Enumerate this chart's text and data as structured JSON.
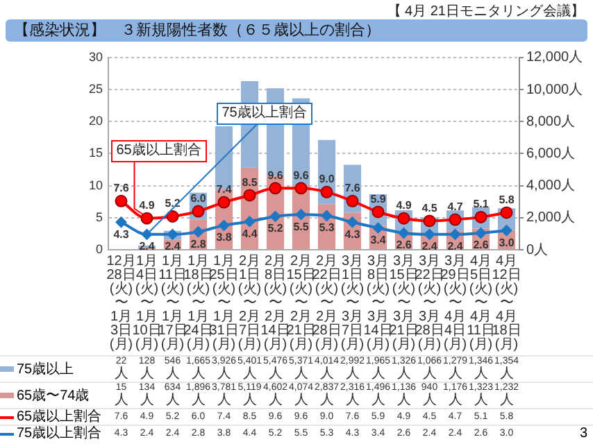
{
  "chart_data": {
    "type": "bar",
    "title": "【感染状況】　３新規陽性者数（６５歳以上の割合）",
    "annotations": [
      "【 4月 21日モニタリング会議】",
      {
        "text": "65歳以上割合",
        "x": "1月4日\n(火)\n〜\n1月10日\n(月)",
        "y": 4.9
      },
      {
        "text": "75歳以上割合",
        "x": "1月4日\n(火)\n〜\n1月10日\n(月)",
        "y": 2.4
      },
      "3"
    ],
    "categories": [
      "12月28日\n(火)\n〜\n1月3日\n(月)",
      "1月4日\n(火)\n〜\n1月10日\n(月)",
      "1月11日\n(火)\n〜\n1月17日\n(月)",
      "1月18日\n(火)\n〜\n1月24日\n(月)",
      "1月25日\n(火)\n〜\n1月31日\n(月)",
      "2月1日\n(火)\n〜\n2月7日\n(月)",
      "2月8日\n(火)\n〜\n2月14日\n(月)",
      "2月15日\n(火)\n〜\n2月21日\n(月)",
      "2月22日\n(火)\n〜\n2月28日\n(月)",
      "3月1日\n(火)\n〜\n3月7日\n(月)",
      "3月8日\n(火)\n〜\n3月14日\n(月)",
      "3月15日\n(火)\n〜\n3月21日\n(月)",
      "3月22日\n(火)\n〜\n3月28日\n(月)",
      "3月29日\n(火)\n〜\n4月4日\n(月)",
      "4月5日\n(火)\n〜\n4月11日\n(月)",
      "4月12日\n(火)\n〜\n4月18日\n(月)"
    ],
    "series": [
      {
        "name": "65歳〜74歳",
        "type": "bar",
        "axis": "y2",
        "color": "#d99694",
        "values": [
          15,
          134,
          634,
          1896,
          3781,
          5119,
          4602,
          4074,
          2837,
          2316,
          1496,
          1136,
          940,
          1176,
          1323,
          1232
        ],
        "value_labels": [
          "15人",
          "134人",
          "634人",
          "1,896人",
          "3,781人",
          "5,119人",
          "4,602人",
          "4,074人",
          "2,837人",
          "2,316人",
          "1,496人",
          "1,136人",
          "940人",
          "1,176人",
          "1,323人",
          "1,232人"
        ]
      },
      {
        "name": "75歳以上",
        "type": "bar",
        "axis": "y2",
        "color": "#95b3d7",
        "values": [
          22,
          128,
          546,
          1665,
          3926,
          5401,
          5476,
          5371,
          4014,
          2992,
          1965,
          1326,
          1066,
          1279,
          1346,
          1354
        ],
        "value_labels": [
          "22人",
          "128人",
          "546人",
          "1,665人",
          "3,926人",
          "5,401人",
          "5,476人",
          "5,371人",
          "4,014人",
          "2,992人",
          "1,965人",
          "1,326人",
          "1,066人",
          "1,279人",
          "1,346人",
          "1,354人"
        ]
      },
      {
        "name": "65歳以上割合",
        "type": "line",
        "axis": "y",
        "color": "#ff0000",
        "marker": "circle",
        "values": [
          7.6,
          4.9,
          5.2,
          6.0,
          7.4,
          8.5,
          9.6,
          9.6,
          9.0,
          7.6,
          5.9,
          4.9,
          4.5,
          4.7,
          5.1,
          5.8
        ],
        "value_labels": [
          "7.6",
          "4.9",
          "5.2",
          "6.0",
          "7.4",
          "8.5",
          "9.6",
          "9.6",
          "9.0",
          "7.6",
          "5.9",
          "4.9",
          "4.5",
          "4.7",
          "5.1",
          "5.8"
        ]
      },
      {
        "name": "75歳以上割合",
        "type": "line",
        "axis": "y",
        "color": "#1f77c4",
        "marker": "diamond",
        "values": [
          4.3,
          2.4,
          2.4,
          2.8,
          3.8,
          4.4,
          5.2,
          5.5,
          5.3,
          4.3,
          3.4,
          2.6,
          2.4,
          2.4,
          2.6,
          3.0
        ],
        "value_labels": [
          "4.3",
          "2.4",
          "2.4",
          "2.8",
          "3.8",
          "4.4",
          "5.2",
          "5.5",
          "5.3",
          "4.3",
          "3.4",
          "2.6",
          "2.4",
          "2.4",
          "2.6",
          "3.0"
        ]
      }
    ],
    "stacked": true,
    "ylim": [
      0,
      30
    ],
    "yticks": [
      0,
      5,
      10,
      15,
      20,
      25,
      30
    ],
    "y2lim": [
      0,
      12000
    ],
    "y2ticks": [
      {
        "value": 0,
        "label": "0人"
      },
      {
        "value": 2000,
        "label": "2,000人"
      },
      {
        "value": 4000,
        "label": "4,000人"
      },
      {
        "value": 6000,
        "label": "6,000人"
      },
      {
        "value": 8000,
        "label": "8,000人"
      },
      {
        "value": 10000,
        "label": "10,000人"
      },
      {
        "value": 12000,
        "label": "12,000人"
      }
    ],
    "grid": "y",
    "legend": "bottom"
  }
}
